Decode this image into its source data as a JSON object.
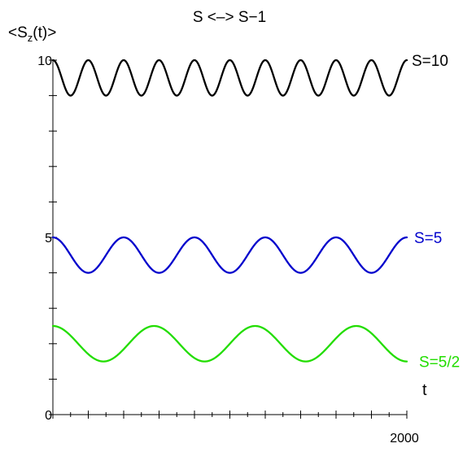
{
  "chart_data": {
    "type": "line",
    "title": "S <–> S−1",
    "ylabel": {
      "prefix": "<S",
      "subscript": "z",
      "suffix": "(t)>"
    },
    "xlabel": "t",
    "xlim": [
      0,
      2000
    ],
    "ylim": [
      0,
      10
    ],
    "x_tick_count": 20,
    "y_tick_count": 10,
    "x_tick_labels": [
      {
        "x": 2000,
        "label": "2000"
      }
    ],
    "y_tick_labels": [
      {
        "y": 0,
        "label": "0"
      },
      {
        "y": 5,
        "label": "5"
      },
      {
        "y": 10,
        "label": "10"
      }
    ],
    "grid": false,
    "series": [
      {
        "name": "S=10",
        "color": "#000000",
        "center": 9.5,
        "amplitude": 0.5,
        "cycles": 10,
        "phase": "cosine"
      },
      {
        "name": "S=5",
        "color": "#0000cc",
        "center": 4.5,
        "amplitude": 0.5,
        "cycles": 5,
        "phase": "cosine"
      },
      {
        "name": "S=5/2",
        "color": "#22dd00",
        "center": 2.0,
        "amplitude": 0.5,
        "cycles": 3.5,
        "phase": "cosine"
      }
    ]
  }
}
